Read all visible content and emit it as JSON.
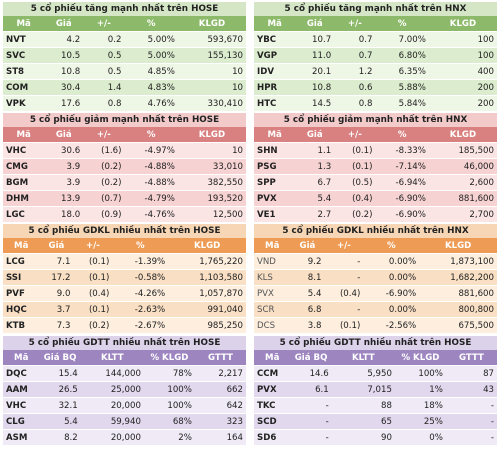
{
  "hose_gain": {
    "title": "5 cổ phiếu tăng mạnh nhất trên HOSE",
    "headers": [
      "Mã",
      "Giá",
      "+/-",
      "%",
      "KLGD"
    ],
    "rows": [
      [
        "NVT",
        "4.2",
        "0.2",
        "5.00%",
        "593,670"
      ],
      [
        "SVC",
        "10.5",
        "0.5",
        "5.00%",
        "155,130"
      ],
      [
        "ST8",
        "10.8",
        "0.5",
        "4.85%",
        "10"
      ],
      [
        "COM",
        "30.4",
        "1.4",
        "4.83%",
        "10"
      ],
      [
        "VPK",
        "17.6",
        "0.8",
        "4.76%",
        "330,410"
      ]
    ]
  },
  "hnx_gain": {
    "title": "5 cổ phiếu tăng mạnh nhất trên HNX",
    "headers": [
      "Mã",
      "Giá",
      "+/-",
      "%",
      "KLGD"
    ],
    "rows": [
      [
        "YBC",
        "10.7",
        "0.7",
        "7.00%",
        "100"
      ],
      [
        "VGP",
        "11.0",
        "0.7",
        "6.80%",
        "100"
      ],
      [
        "IDV",
        "20.1",
        "1.2",
        "6.35%",
        "400"
      ],
      [
        "HPR",
        "10.8",
        "0.6",
        "5.88%",
        "200"
      ],
      [
        "HTC",
        "14.5",
        "0.8",
        "5.84%",
        "200"
      ]
    ]
  },
  "hose_loss": {
    "title": "5 cổ phiếu giảm mạnh nhất trên HOSE",
    "headers": [
      "Mã",
      "Giá",
      "+/-",
      "%",
      "KLGD"
    ],
    "rows": [
      [
        "VHC",
        "30.6",
        "(1.6)",
        "-4.97%",
        "10"
      ],
      [
        "CMG",
        "3.9",
        "(0.2)",
        "-4.88%",
        "33,010"
      ],
      [
        "BGM",
        "3.9",
        "(0.2)",
        "-4.88%",
        "382,550"
      ],
      [
        "DHM",
        "13.9",
        "(0.7)",
        "-4.79%",
        "193,520"
      ],
      [
        "LGC",
        "18.0",
        "(0.9)",
        "-4.76%",
        "12,500"
      ]
    ]
  },
  "hnx_loss": {
    "title": "5 cổ phiếu giảm mạnh nhất trên HNX",
    "headers": [
      "Mã",
      "Giá",
      "+/-",
      "%",
      "KLGD"
    ],
    "rows": [
      [
        "SHN",
        "1.1",
        "(0.1)",
        "-8.33%",
        "185,500"
      ],
      [
        "PSG",
        "1.3",
        "(0.1)",
        "-7.14%",
        "46,000"
      ],
      [
        "SPP",
        "6.7",
        "(0.5)",
        "-6.94%",
        "2,600"
      ],
      [
        "PVX",
        "5.4",
        "(0.4)",
        "-6.90%",
        "881,600"
      ],
      [
        "VE1",
        "2.7",
        "(0.2)",
        "-6.90%",
        "2,700"
      ]
    ]
  },
  "hose_vol": {
    "title": "5 cổ phiếu GDKL nhiều nhất trên HOSE",
    "headers": [
      "Mã",
      "Giá",
      "+/-",
      "%",
      "KLGD"
    ],
    "rows": [
      [
        "LCG",
        "7.1",
        "(0.1)",
        "-1.39%",
        "1,765,220"
      ],
      [
        "SSI",
        "17.2",
        "(0.1)",
        "-0.58%",
        "1,103,580"
      ],
      [
        "PVF",
        "9.0",
        "(0.4)",
        "-4.26%",
        "1,057,870"
      ],
      [
        "HQC",
        "3.7",
        "(0.1)",
        "-2.63%",
        "991,040"
      ],
      [
        "KTB",
        "7.3",
        "(0.2)",
        "-2.67%",
        "985,250"
      ]
    ]
  },
  "hnx_vol": {
    "title": "5 cổ phiếu GDKL nhiều nhất trên HNX",
    "headers": [
      "Mã",
      "Giá",
      "+/-",
      "%",
      "KLGD"
    ],
    "rows": [
      [
        "VND",
        "9.2",
        "-",
        "0.00%",
        "1,873,100"
      ],
      [
        "KLS",
        "8.1",
        "-",
        "0.00%",
        "1,682,200"
      ],
      [
        "PVX",
        "5.4",
        "(0.4)",
        "-6.90%",
        "881,600"
      ],
      [
        "SCR",
        "6.8",
        "-",
        "0.00%",
        "800,800"
      ],
      [
        "DCS",
        "3.8",
        "(0.1)",
        "-2.56%",
        "675,500"
      ]
    ]
  },
  "hose_ptt": {
    "title": "5 cổ phiếu GDTT nhiều nhất trên HOSE",
    "headers": [
      "Mã",
      "Giá BQ",
      "KLTT",
      "% KLGD",
      "GTTT"
    ],
    "rows": [
      [
        "DQC",
        "15.4",
        "144,000",
        "78%",
        "2,217"
      ],
      [
        "AAM",
        "26.5",
        "25,000",
        "100%",
        "662"
      ],
      [
        "VHC",
        "32.1",
        "20,000",
        "100%",
        "642"
      ],
      [
        "CLG",
        "5.4",
        "59,940",
        "68%",
        "323"
      ],
      [
        "ASM",
        "8.2",
        "20,000",
        "2%",
        "164"
      ]
    ]
  },
  "hnx_ptt": {
    "title": "5 cổ phiếu GDTT nhiều nhất trên HOSE",
    "headers": [
      "Mã",
      "Giá BQ",
      "KLTT",
      "% KLGD",
      "GTTT"
    ],
    "rows": [
      [
        "CCM",
        "14.6",
        "5,950",
        "100%",
        "87"
      ],
      [
        "PVX",
        "6.1",
        "7,015",
        "1%",
        "43"
      ],
      [
        "TKC",
        "-",
        "88",
        "18%",
        "-"
      ],
      [
        "SCD",
        "-",
        "65",
        "25%",
        "-"
      ],
      [
        "SD6",
        "-",
        "90",
        "0%",
        "-"
      ]
    ]
  }
}
